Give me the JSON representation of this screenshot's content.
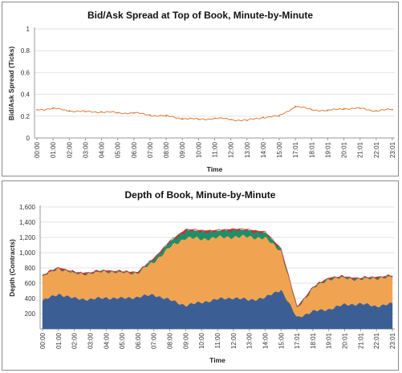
{
  "chart_data": [
    {
      "type": "line",
      "title": "Bid/Ask Spread at Top of Book, Minute-by-Minute",
      "xlabel": "Time",
      "ylabel": "Bid/Ask Spread (Ticks)",
      "ylim": [
        0,
        1
      ],
      "yticks": [
        "0",
        "0.2",
        "0.4",
        "0.6",
        "0.8",
        "1"
      ],
      "grid": true,
      "x_ticks": [
        "00:00",
        "01:00",
        "02:00",
        "03:00",
        "04:00",
        "05:00",
        "06:00",
        "07:00",
        "08:00",
        "09:00",
        "10:00",
        "11:00",
        "12:00",
        "13:00",
        "14:00",
        "15:00",
        "17:01",
        "18:01",
        "19:01",
        "20:01",
        "21:01",
        "22:01",
        "23:01"
      ],
      "series": [
        {
          "color": "#e07b39",
          "values": [
            0.26,
            0.27,
            0.25,
            0.24,
            0.24,
            0.23,
            0.23,
            0.21,
            0.2,
            0.18,
            0.17,
            0.18,
            0.17,
            0.16,
            0.19,
            0.2,
            0.29,
            0.26,
            0.25,
            0.27,
            0.27,
            0.25,
            0.26
          ]
        }
      ]
    },
    {
      "type": "area",
      "stacked": true,
      "title": "Depth of Book, Minute-by-Minute",
      "xlabel": "Time",
      "ylabel": "Depth (Contracts)",
      "ylim": [
        0,
        1600
      ],
      "yticks": [
        "200",
        "400",
        "600",
        "800",
        "1,000",
        "1,200",
        "1,400",
        "1,600"
      ],
      "grid": true,
      "x_ticks": [
        "00:00",
        "01:00",
        "02:00",
        "03:00",
        "04:00",
        "05:00",
        "06:00",
        "07:00",
        "08:00",
        "09:00",
        "10:00",
        "11:00",
        "12:00",
        "13:00",
        "14:00",
        "15:00",
        "17:01",
        "18:01",
        "19:01",
        "20:01",
        "21:01",
        "22:01",
        "23:01"
      ],
      "series": [
        {
          "color": "#3b5f95",
          "values": [
            370,
            460,
            400,
            390,
            410,
            400,
            420,
            450,
            380,
            310,
            350,
            390,
            410,
            380,
            410,
            520,
            150,
            230,
            260,
            320,
            330,
            300,
            330
          ]
        },
        {
          "color": "#f0a451",
          "values": [
            320,
            340,
            330,
            340,
            350,
            340,
            320,
            430,
            690,
            890,
            830,
            810,
            800,
            830,
            780,
            510,
            130,
            300,
            400,
            350,
            320,
            370,
            350
          ]
        },
        {
          "color": "#1f8f67",
          "values": [
            5,
            5,
            5,
            5,
            5,
            5,
            5,
            40,
            70,
            90,
            100,
            80,
            90,
            80,
            70,
            20,
            5,
            10,
            10,
            10,
            10,
            10,
            10
          ]
        },
        {
          "color": "#c4323b",
          "values": [
            5,
            5,
            5,
            5,
            5,
            5,
            5,
            10,
            15,
            20,
            15,
            15,
            15,
            15,
            15,
            10,
            5,
            5,
            5,
            5,
            5,
            5,
            5
          ]
        }
      ]
    }
  ]
}
